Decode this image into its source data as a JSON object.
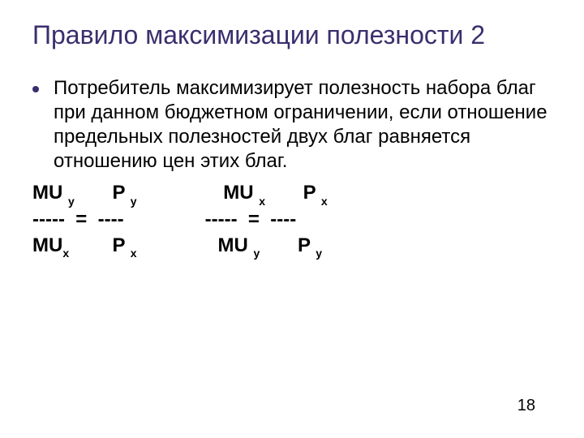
{
  "slide": {
    "title": "Правило максимизации полезности 2",
    "bullet_text": "Потребитель максимизирует полезность набора благ при данном бюджетном ограничении, если  отношение предельных полезностей двух благ равняется отношению цен этих благ.",
    "page_number": "18",
    "colors": {
      "title_color": "#3b2e6e",
      "body_color": "#000000",
      "bullet_color": "#3b2e6e",
      "background": "#ffffff"
    },
    "typography": {
      "title_fontsize": 32,
      "body_fontsize": 24,
      "sub_fontsize": 14,
      "page_number_fontsize": 20,
      "font_family": "Arial"
    },
    "formula": {
      "line1_parts": {
        "seg1": "MU ",
        "sub1": "y",
        "seg2": "       P ",
        "sub2": "y",
        "seg3": "                MU ",
        "sub3": "x",
        "seg4": "       P ",
        "sub4": "x"
      },
      "line2": "-----  =  ----               -----  =  ----",
      "line3_parts": {
        "seg1": "MU",
        "sub1": "x",
        "seg2": "        P ",
        "sub2": "x",
        "seg3": "               MU ",
        "sub3": "y",
        "seg4": "       P ",
        "sub4": "y"
      }
    }
  }
}
